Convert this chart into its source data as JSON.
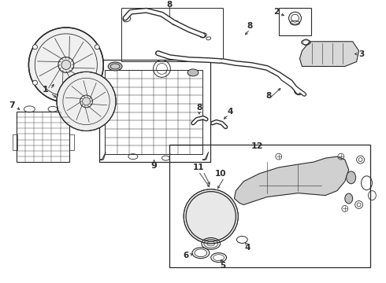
{
  "background_color": "#ffffff",
  "fig_width": 4.9,
  "fig_height": 3.6,
  "dpi": 100,
  "line_color": "#2a2a2a",
  "label_color": "#111111"
}
